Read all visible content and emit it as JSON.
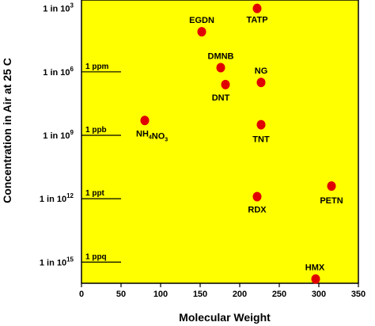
{
  "chart_data": {
    "type": "scatter",
    "title": "",
    "xlabel": "Molecular Weight",
    "ylabel": "Concentration in Air at 25 C",
    "xlim": [
      0,
      350
    ],
    "x_ticks": [
      0,
      50,
      100,
      150,
      200,
      250,
      300,
      350
    ],
    "y_scale": "log-fraction",
    "y_ticks": [
      {
        "prefix": "1 in 10",
        "exp": "3",
        "log10": -3
      },
      {
        "prefix": "1 in 10",
        "exp": "6",
        "log10": -6
      },
      {
        "prefix": "1 in 10",
        "exp": "9",
        "log10": -9
      },
      {
        "prefix": "1 in 10",
        "exp": "12",
        "log10": -12
      },
      {
        "prefix": "1 in 10",
        "exp": "15",
        "log10": -15
      }
    ],
    "ylim_log10": [
      -2.6,
      -16.0
    ],
    "reference_lines": [
      {
        "label": "1 ppm",
        "log10": -6,
        "x_end": 50
      },
      {
        "label": "1 ppb",
        "log10": -9,
        "x_end": 50
      },
      {
        "label": "1 ppt",
        "log10": -12,
        "x_end": 50
      },
      {
        "label": "1 ppq",
        "log10": -15,
        "x_end": 50
      }
    ],
    "points": [
      {
        "name": "TATP",
        "x": 222,
        "log10": -3.0
      },
      {
        "name": "EGDN",
        "x": 152,
        "log10": -4.1
      },
      {
        "name": "DMNB",
        "x": 176,
        "log10": -5.8
      },
      {
        "name": "NG",
        "x": 227,
        "log10": -6.5
      },
      {
        "name": "DNT",
        "x": 182,
        "log10": -6.6
      },
      {
        "name": "NH4NO3",
        "x": 80,
        "log10": -8.3
      },
      {
        "name": "TNT",
        "x": 227,
        "log10": -8.5
      },
      {
        "name": "PETN",
        "x": 316,
        "log10": -11.4
      },
      {
        "name": "RDX",
        "x": 222,
        "log10": -11.9
      },
      {
        "name": "HMX",
        "x": 296,
        "log10": -15.8
      }
    ],
    "plot_background": "#ffff00",
    "marker_color": "#e00000",
    "grid": false,
    "legend": "none"
  }
}
